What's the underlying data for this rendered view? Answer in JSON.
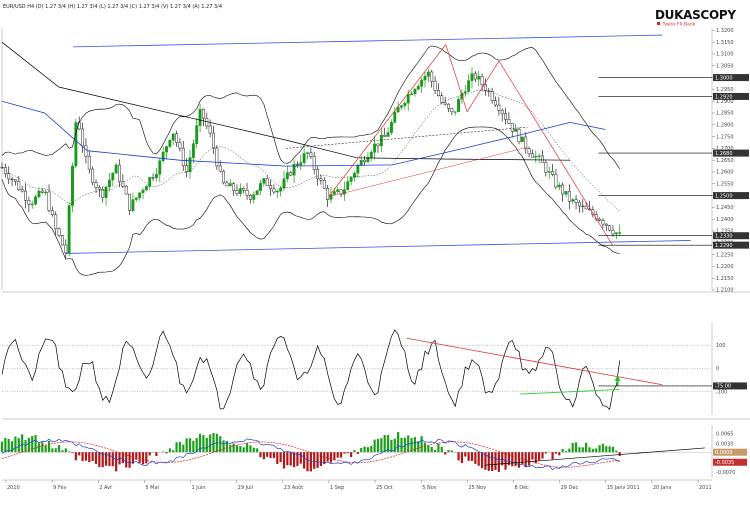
{
  "header": {
    "text": "EUR/USD H4 (D) 1.27 3/4 (H) 1.27 3/4 (L) 1.27 3/4 (C) 1.27 3/4 (V) 1.27 3/4 (A) 1.27 3/4"
  },
  "brand": {
    "name": "DUKASCOPY",
    "slogan": "Swiss FX Bank",
    "name_color": "#111111",
    "slogan_color": "#dd2222"
  },
  "chart_data": [
    {
      "type": "candlestick",
      "title": "",
      "yticks": [
        "1.3200",
        "1.3150",
        "1.3100",
        "1.3050",
        "1.3000",
        "1.2950",
        "1.2900",
        "1.2850",
        "1.2800",
        "1.2750",
        "1.2700",
        "1.2650",
        "1.2600",
        "1.2550",
        "1.2500",
        "1.2450",
        "1.2400",
        "1.2350",
        "1.2300",
        "1.2250",
        "1.2200",
        "1.2150",
        "1.2100"
      ],
      "ylim": [
        1.21,
        1.321
      ],
      "price_tags": [
        {
          "value": 1.3,
          "text": "1.3000"
        },
        {
          "value": 1.292,
          "text": "1.2920"
        },
        {
          "value": 1.268,
          "text": "1.2680"
        },
        {
          "value": 1.25,
          "text": "1.2500"
        },
        {
          "value": 1.233,
          "text": "1.2330"
        },
        {
          "value": 1.229,
          "text": "1.2290"
        }
      ],
      "bollinger": {
        "period": 20,
        "dev": 2
      },
      "moving_averages": [
        {
          "name": "MA",
          "color": "#000000"
        },
        {
          "name": "MA2",
          "color": "#1a3fd0"
        }
      ],
      "colors": {
        "up": "#1a9a1a",
        "down": "#222222",
        "bands": "#000000",
        "channel": "#3355dd",
        "trend": "#e23030",
        "ma_blue": "#1a3fd0"
      }
    },
    {
      "type": "line",
      "title": "",
      "label": "",
      "yticks": [
        "100",
        "0",
        "-100"
      ],
      "ylim": [
        -200,
        200
      ],
      "levels": [
        100,
        0,
        -100
      ],
      "tag": "-75.00",
      "colors": {
        "line": "#000000",
        "trend_down": "#e23030",
        "trend_up": "#33cc33",
        "arrow": "#22bb22"
      }
    },
    {
      "type": "bar",
      "title": "",
      "label": "",
      "yticks": [
        "0.0065",
        "0.0030",
        "0.0000",
        "-0.0035",
        "-0.0070"
      ],
      "ylim": [
        -0.009,
        0.0095
      ],
      "tags": [
        {
          "value": 0.0,
          "text": "0.0000",
          "bg": "#c79a6a"
        },
        {
          "value": -0.0035,
          "text": "-0.0035",
          "bg": "#c23030"
        }
      ],
      "colors": {
        "pos": "#1aa01a",
        "neg": "#b01818",
        "signal": "#e02020",
        "macd": "#1a3fd0",
        "trend": "#000000"
      }
    }
  ],
  "xaxis": {
    "labels": [
      "2010",
      "9 Fév",
      "2 Avr",
      "5 Mai",
      "1 Juin",
      "29 Juil",
      "23 Août",
      "1 Sep",
      "25 Oct",
      "5 Nov",
      "25 Nov",
      "8 Déc",
      "29 Déc",
      "15 Janv 2011",
      "20 Janv",
      "2011"
    ]
  }
}
